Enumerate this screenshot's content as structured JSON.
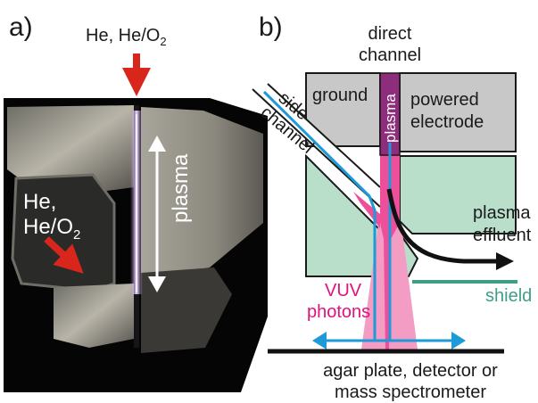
{
  "panel_a": {
    "label": "a)",
    "top_gas_main": "He, He/O",
    "top_gas_sub": "2",
    "side_gas_line1": "He,",
    "side_gas_line2_main": "He/O",
    "side_gas_line2_sub": "2",
    "plasma_label": "plasma"
  },
  "panel_b": {
    "label": "b)",
    "direct_channel_line1": "direct",
    "direct_channel_line2": "channel",
    "side_channel_line1": "side",
    "side_channel_line2": "channel",
    "ground_label": "ground",
    "plasma_label": "plasma",
    "powered_line1": "powered",
    "powered_line2": "electrode",
    "effluent_line1": "plasma",
    "effluent_line2": "effluent",
    "vuv_line1": "VUV",
    "vuv_line2": "photons",
    "shield_label": "shield",
    "target_line1": "agar plate, detector or",
    "target_line2": "mass spectrometer"
  },
  "colors": {
    "red_arrow": "#d9261c",
    "blue_flow": "#1e9ad8",
    "pink_plasma": "#ee4f9a",
    "light_pink": "#f39cc4",
    "teal_shield": "#3f9e8a",
    "mint_block": "#b9dfcb",
    "grey_electrode": "#c8c8c8",
    "purple_channel": "#8e2d7c"
  }
}
